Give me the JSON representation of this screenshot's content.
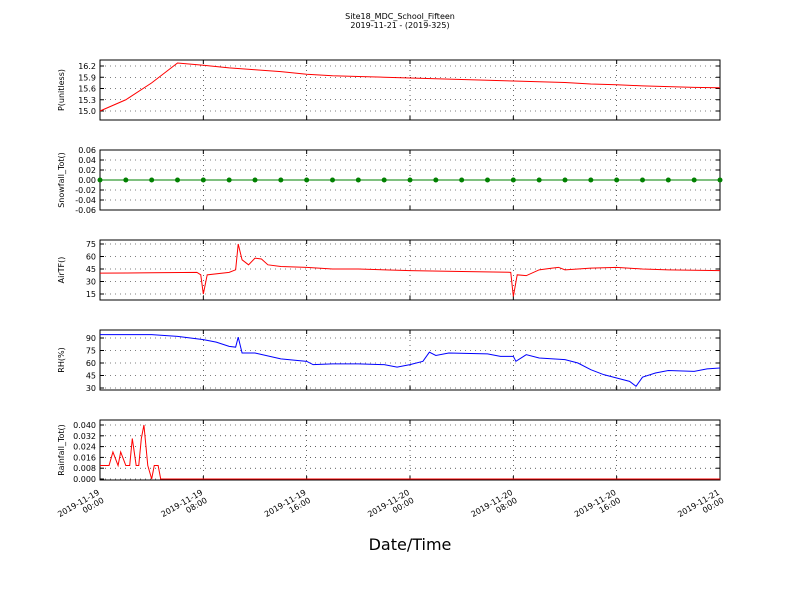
{
  "chart_data": [
    {
      "type": "line",
      "title": "Site18_MDC_School_Fifteen",
      "subtitle": "2019-11-21 - (2019-325)",
      "ylabel": "P(unitless)",
      "grid": true,
      "xlim": [
        "2019-11-19 00:00",
        "2019-11-21 00:00"
      ],
      "xticks": [
        "2019-11-19 00:00",
        "2019-11-19 08:00",
        "2019-11-19 16:00",
        "2019-11-20 00:00",
        "2019-11-20 08:00",
        "2019-11-20 16:00",
        "2019-11-21 00:00"
      ],
      "ylim": [
        14.76,
        16.36
      ],
      "yticks": [
        {
          "value": 15,
          "label": "15.0"
        },
        15.3,
        15.6,
        15.9,
        16.2
      ],
      "x": [
        "2019-11-19 00:00",
        "2019-11-19 02:00",
        "2019-11-19 04:00",
        "2019-11-19 06:00",
        "2019-11-19 08:00",
        "2019-11-19 10:00",
        "2019-11-19 12:00",
        "2019-11-19 14:00",
        "2019-11-19 16:00",
        "2019-11-19 18:00",
        "2019-11-19 20:00",
        "2019-11-19 22:00",
        "2019-11-20 00:00",
        "2019-11-20 02:00",
        "2019-11-20 04:00",
        "2019-11-20 06:00",
        "2019-11-20 08:00",
        "2019-11-20 10:00",
        "2019-11-20 12:00",
        "2019-11-20 14:00",
        "2019-11-20 16:00",
        "2019-11-20 18:00",
        "2019-11-20 20:00",
        "2019-11-20 22:00",
        "2019-11-21 00:00"
      ],
      "series": [
        {
          "color": "#ff0000",
          "values": [
            15.0,
            15.3,
            15.75,
            16.28,
            16.22,
            16.15,
            16.1,
            16.05,
            15.98,
            15.94,
            15.92,
            15.9,
            15.88,
            15.86,
            15.84,
            15.82,
            15.8,
            15.78,
            15.76,
            15.72,
            15.7,
            15.67,
            15.65,
            15.63,
            15.62
          ]
        }
      ]
    },
    {
      "type": "line",
      "ylabel": "Snowfall_Tot()",
      "grid": true,
      "markers": true,
      "xlim": [
        "2019-11-19 00:00",
        "2019-11-21 00:00"
      ],
      "xticks": [
        "2019-11-19 00:00",
        "2019-11-19 08:00",
        "2019-11-19 16:00",
        "2019-11-20 00:00",
        "2019-11-20 08:00",
        "2019-11-20 16:00",
        "2019-11-21 00:00"
      ],
      "ylim": [
        -0.06,
        0.06
      ],
      "yticks": [
        -0.06,
        -0.04,
        -0.02,
        {
          "value": 0,
          "label": "0.00"
        },
        0.02,
        0.04,
        0.06
      ],
      "x": [
        "2019-11-19 00:00",
        "2019-11-19 02:00",
        "2019-11-19 04:00",
        "2019-11-19 06:00",
        "2019-11-19 08:00",
        "2019-11-19 10:00",
        "2019-11-19 12:00",
        "2019-11-19 14:00",
        "2019-11-19 16:00",
        "2019-11-19 18:00",
        "2019-11-19 20:00",
        "2019-11-19 22:00",
        "2019-11-20 00:00",
        "2019-11-20 02:00",
        "2019-11-20 04:00",
        "2019-11-20 06:00",
        "2019-11-20 08:00",
        "2019-11-20 10:00",
        "2019-11-20 12:00",
        "2019-11-20 14:00",
        "2019-11-20 16:00",
        "2019-11-20 18:00",
        "2019-11-20 20:00",
        "2019-11-20 22:00",
        "2019-11-21 00:00"
      ],
      "series": [
        {
          "color": "#008000",
          "values": [
            0,
            0,
            0,
            0,
            0,
            0,
            0,
            0,
            0,
            0,
            0,
            0,
            0,
            0,
            0,
            0,
            0,
            0,
            0,
            0,
            0,
            0,
            0,
            0,
            0
          ]
        }
      ]
    },
    {
      "type": "line",
      "ylabel": "AirTF()",
      "grid": true,
      "xlim": [
        "2019-11-19 00:00",
        "2019-11-21 00:00"
      ],
      "xticks": [
        "2019-11-19 00:00",
        "2019-11-19 08:00",
        "2019-11-19 16:00",
        "2019-11-20 00:00",
        "2019-11-20 08:00",
        "2019-11-20 16:00",
        "2019-11-21 00:00"
      ],
      "ylim": [
        7.8,
        79.8
      ],
      "yticks": [
        15,
        30,
        45,
        60,
        75
      ],
      "x": [
        "2019-11-19 00:00",
        "2019-11-19 04:00",
        "2019-11-19 07:30",
        "2019-11-19 07:48",
        "2019-11-19 08:00",
        "2019-11-19 08:18",
        "2019-11-19 10:00",
        "2019-11-19 10:30",
        "2019-11-19 10:42",
        "2019-11-19 11:00",
        "2019-11-19 11:30",
        "2019-11-19 12:00",
        "2019-11-19 12:30",
        "2019-11-19 13:00",
        "2019-11-19 14:00",
        "2019-11-19 16:00",
        "2019-11-19 18:00",
        "2019-11-19 20:00",
        "2019-11-20 00:00",
        "2019-11-20 04:00",
        "2019-11-20 07:48",
        "2019-11-20 08:00",
        "2019-11-20 08:18",
        "2019-11-20 09:00",
        "2019-11-20 10:00",
        "2019-11-20 11:00",
        "2019-11-20 11:30",
        "2019-11-20 12:00",
        "2019-11-20 14:00",
        "2019-11-20 16:00",
        "2019-11-20 18:00",
        "2019-11-20 20:00",
        "2019-11-21 00:00"
      ],
      "series": [
        {
          "color": "#ff0000",
          "values": [
            40,
            40.5,
            41,
            38,
            15,
            38,
            41,
            44,
            75,
            56,
            50,
            58,
            57,
            50,
            48,
            47,
            45,
            45,
            43,
            42,
            41,
            12,
            38,
            37,
            44,
            46,
            47,
            44,
            46,
            47,
            45,
            44,
            43
          ]
        }
      ]
    },
    {
      "type": "line",
      "ylabel": "RH(%)",
      "grid": true,
      "xlim": [
        "2019-11-19 00:00",
        "2019-11-21 00:00"
      ],
      "xticks": [
        "2019-11-19 00:00",
        "2019-11-19 08:00",
        "2019-11-19 16:00",
        "2019-11-20 00:00",
        "2019-11-20 08:00",
        "2019-11-20 16:00",
        "2019-11-21 00:00"
      ],
      "ylim": [
        27.6,
        99.6
      ],
      "yticks": [
        30,
        45,
        60,
        75,
        90
      ],
      "x": [
        "2019-11-19 00:00",
        "2019-11-19 04:00",
        "2019-11-19 06:00",
        "2019-11-19 08:00",
        "2019-11-19 09:00",
        "2019-11-19 10:00",
        "2019-11-19 10:30",
        "2019-11-19 10:42",
        "2019-11-19 11:00",
        "2019-11-19 12:00",
        "2019-11-19 14:00",
        "2019-11-19 16:00",
        "2019-11-19 16:30",
        "2019-11-19 18:00",
        "2019-11-19 20:00",
        "2019-11-19 22:00",
        "2019-11-19 23:00",
        "2019-11-20 00:00",
        "2019-11-20 01:00",
        "2019-11-20 01:30",
        "2019-11-20 02:00",
        "2019-11-20 03:00",
        "2019-11-20 06:00",
        "2019-11-20 07:00",
        "2019-11-20 08:00",
        "2019-11-20 08:12",
        "2019-11-20 09:00",
        "2019-11-20 10:00",
        "2019-11-20 12:00",
        "2019-11-20 13:00",
        "2019-11-20 14:00",
        "2019-11-20 15:00",
        "2019-11-20 16:00",
        "2019-11-20 17:00",
        "2019-11-20 17:30",
        "2019-11-20 18:00",
        "2019-11-20 19:00",
        "2019-11-20 20:00",
        "2019-11-20 22:00",
        "2019-11-20 23:00",
        "2019-11-21 00:00"
      ],
      "series": [
        {
          "color": "#0000ff",
          "values": [
            94,
            94,
            92,
            88,
            85,
            80,
            79,
            91,
            72,
            72,
            65,
            62,
            58,
            59,
            59,
            58,
            55,
            58,
            62,
            73,
            69,
            72,
            71,
            68,
            68,
            62,
            70,
            66,
            64,
            60,
            52,
            46,
            42,
            38,
            32,
            43,
            48,
            51,
            50,
            53,
            54
          ]
        }
      ]
    },
    {
      "type": "line",
      "ylabel": "Rainfall_Tot()",
      "xlabel": "Date/Time",
      "grid": true,
      "xlim": [
        "2019-11-19 00:00",
        "2019-11-21 00:00"
      ],
      "xticks": [
        "2019-11-19 00:00",
        "2019-11-19 08:00",
        "2019-11-19 16:00",
        "2019-11-20 00:00",
        "2019-11-20 08:00",
        "2019-11-20 16:00",
        "2019-11-21 00:00"
      ],
      "ylim": [
        -0.00074,
        0.0437
      ],
      "yticks": [
        {
          "value": 0,
          "label": "0.000"
        },
        {
          "value": 0.008,
          "label": "0.008"
        },
        {
          "value": 0.016,
          "label": "0.016"
        },
        {
          "value": 0.024,
          "label": "0.024"
        },
        {
          "value": 0.032,
          "label": "0.032"
        },
        {
          "value": 0.04,
          "label": "0.040"
        }
      ],
      "x": [
        "2019-11-19 00:00",
        "2019-11-19 00:42",
        "2019-11-19 01:00",
        "2019-11-19 01:24",
        "2019-11-19 01:36",
        "2019-11-19 02:00",
        "2019-11-19 02:18",
        "2019-11-19 02:30",
        "2019-11-19 02:48",
        "2019-11-19 03:00",
        "2019-11-19 03:12",
        "2019-11-19 03:24",
        "2019-11-19 03:42",
        "2019-11-19 04:00",
        "2019-11-19 04:12",
        "2019-11-19 04:30",
        "2019-11-19 04:42",
        "2019-11-19 12:00",
        "2019-11-20 00:00",
        "2019-11-21 00:00"
      ],
      "series": [
        {
          "color": "#ff0000",
          "values": [
            0.01,
            0.01,
            0.02,
            0.01,
            0.02,
            0.01,
            0.01,
            0.03,
            0.01,
            0.01,
            0.03,
            0.04,
            0.01,
            0,
            0.01,
            0.01,
            0,
            0,
            0,
            0
          ]
        }
      ]
    }
  ]
}
